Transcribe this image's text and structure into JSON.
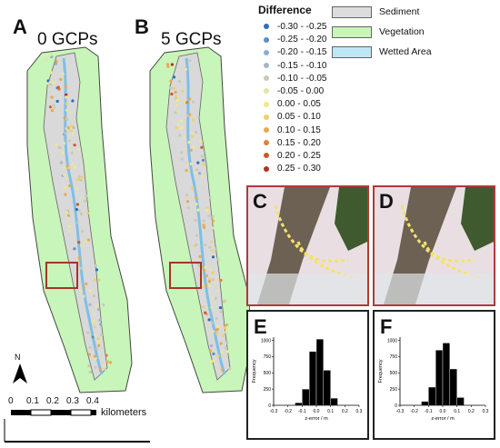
{
  "panels": {
    "a": {
      "letter": "A",
      "title": "0 GCPs"
    },
    "b": {
      "letter": "B",
      "title": "5 GCPs"
    },
    "c": {
      "letter": "C"
    },
    "d": {
      "letter": "D"
    },
    "e": {
      "letter": "E"
    },
    "f": {
      "letter": "F"
    }
  },
  "legend": {
    "title": "Difference",
    "items": [
      {
        "label": "-0.30 - -0.25",
        "color": "#2c6fb5"
      },
      {
        "label": "-0.25 - -0.20",
        "color": "#5b8ec4"
      },
      {
        "label": "-0.20 - -0.15",
        "color": "#8aaed1"
      },
      {
        "label": "-0.15 - -0.10",
        "color": "#a9b6c4"
      },
      {
        "label": "-0.10 - -0.05",
        "color": "#c9c9b8"
      },
      {
        "label": "-0.05 - 0.00",
        "color": "#e8e3a6"
      },
      {
        "label": "0.00 - 0.05",
        "color": "#f3e88a"
      },
      {
        "label": "0.05 - 0.10",
        "color": "#f0cf6a"
      },
      {
        "label": "0.10 - 0.15",
        "color": "#e8a94f"
      },
      {
        "label": "0.15 - 0.20",
        "color": "#db823c"
      },
      {
        "label": "0.20 - 0.25",
        "color": "#c85a2c"
      },
      {
        "label": "0.25 - 0.30",
        "color": "#b1311f"
      }
    ]
  },
  "categories": [
    {
      "label": "Sediment",
      "color": "#dcdcdc"
    },
    {
      "label": "Vegetation",
      "color": "#c8f5b9"
    },
    {
      "label": "Wetted Area",
      "color": "#bfe6f7"
    }
  ],
  "scale": {
    "north": "N",
    "ticks": [
      "0",
      "0.1",
      "0.2",
      "0.3",
      "0.4"
    ],
    "unit": "kilometers"
  },
  "chart_data": [
    {
      "type": "bar",
      "panel": "E",
      "xlabel": "z-error / m",
      "ylabel": "Frequency",
      "xlim": [
        -0.3,
        0.3
      ],
      "ylim": [
        0,
        1050
      ],
      "xticks": [
        "-0.3",
        "-0.2",
        "-0.1",
        "0.0",
        "0.1",
        "0.2",
        "0.3"
      ],
      "yticks": [
        "0",
        "250",
        "500",
        "750",
        "1000"
      ],
      "bin_edges": [
        -0.15,
        -0.1,
        -0.05,
        0.0,
        0.05,
        0.1,
        0.15
      ],
      "values": [
        40,
        250,
        830,
        1020,
        540,
        110
      ]
    },
    {
      "type": "bar",
      "panel": "F",
      "xlabel": "z-error / m",
      "ylabel": "Frequency",
      "xlim": [
        -0.3,
        0.3
      ],
      "ylim": [
        0,
        1050
      ],
      "xticks": [
        "-0.3",
        "-0.2",
        "-0.1",
        "0.0",
        "0.1",
        "0.2",
        "0.3"
      ],
      "yticks": [
        "0",
        "250",
        "500",
        "750",
        "1000"
      ],
      "bin_edges": [
        -0.15,
        -0.1,
        -0.05,
        0.0,
        0.05,
        0.1,
        0.15
      ],
      "values": [
        60,
        280,
        850,
        960,
        560,
        120
      ]
    }
  ]
}
